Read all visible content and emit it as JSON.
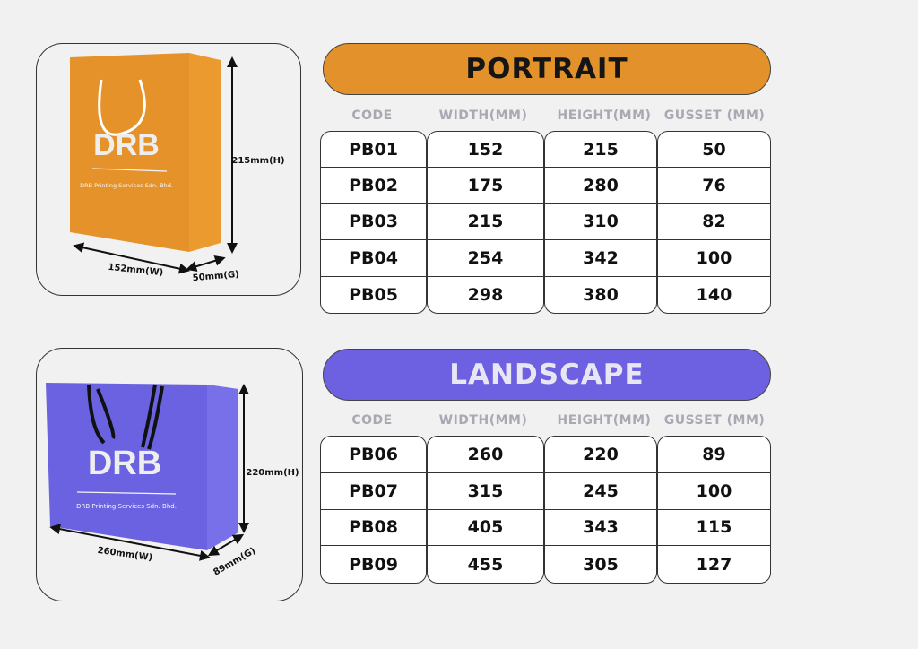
{
  "portrait": {
    "title": "PORTRAIT",
    "color": "#e3922b",
    "bag": {
      "brand": "DRB",
      "company": "DRB Printing Services Sdn. Bhd.",
      "height_label": "215mm(H)",
      "width_label": "152mm(W)",
      "gusset_label": "50mm(G)",
      "handle": "white rope"
    },
    "headers": [
      "CODE",
      "WIDTH(MM)",
      "HEIGHT(MM)",
      "GUSSET (MM)"
    ],
    "rows": [
      [
        "PB01",
        "152",
        "215",
        "50"
      ],
      [
        "PB02",
        "175",
        "280",
        "76"
      ],
      [
        "PB03",
        "215",
        "310",
        "82"
      ],
      [
        "PB04",
        "254",
        "342",
        "100"
      ],
      [
        "PB05",
        "298",
        "380",
        "140"
      ]
    ]
  },
  "landscape": {
    "title": "LANDSCAPE",
    "color": "#6d61e1",
    "bag": {
      "brand": "DRB",
      "company": "DRB Printing Services Sdn. Bhd.",
      "height_label": "220mm(H)",
      "width_label": "260mm(W)",
      "gusset_label": "89mm(G)",
      "handle": "black ribbon"
    },
    "headers": [
      "CODE",
      "WIDTH(MM)",
      "HEIGHT(MM)",
      "GUSSET (MM)"
    ],
    "rows": [
      [
        "PB06",
        "260",
        "220",
        "89"
      ],
      [
        "PB07",
        "315",
        "245",
        "100"
      ],
      [
        "PB08",
        "405",
        "343",
        "115"
      ],
      [
        "PB09",
        "455",
        "305",
        "127"
      ]
    ]
  }
}
